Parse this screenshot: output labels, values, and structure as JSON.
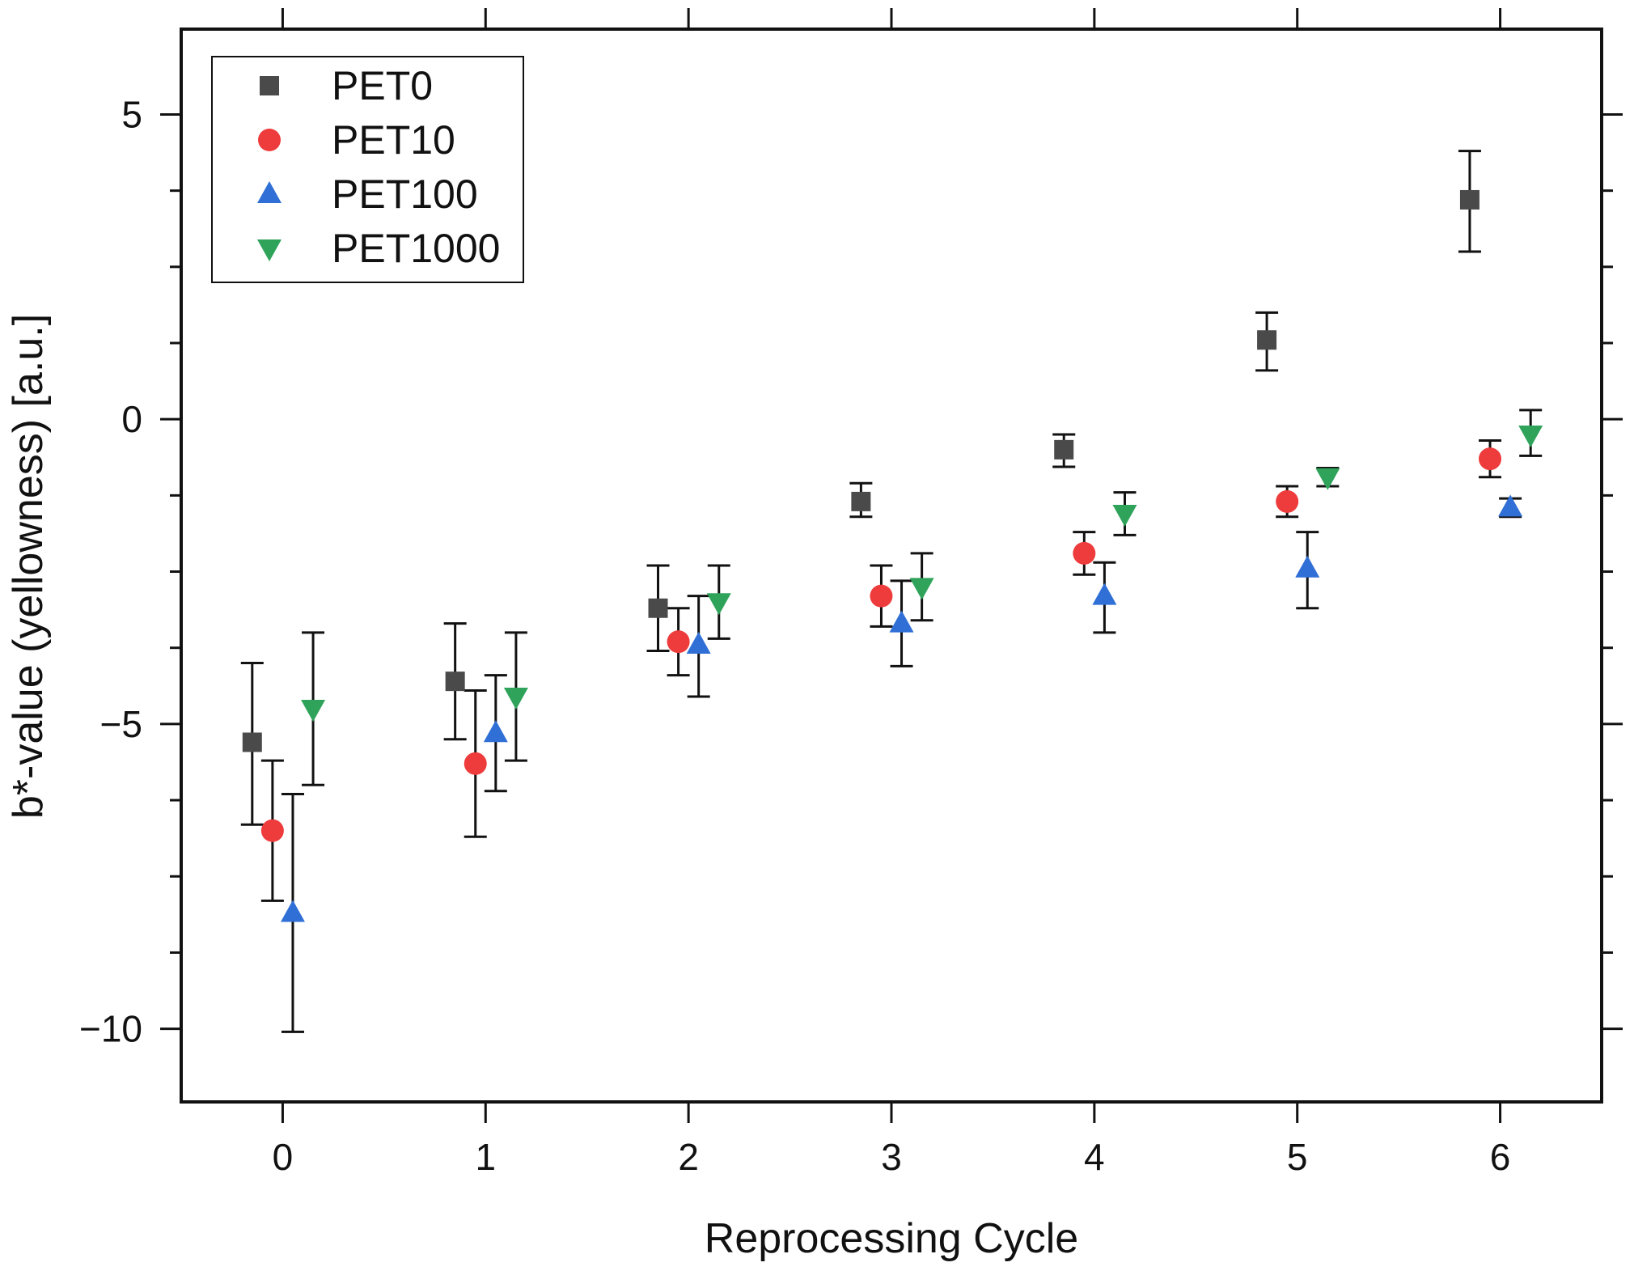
{
  "chart_data": {
    "type": "scatter",
    "xlabel": "Reprocessing Cycle",
    "ylabel": "b*-value (yellowness) [a.u.]",
    "xlim": [
      -0.5,
      6.5
    ],
    "ylim": [
      -11.2,
      6.4
    ],
    "x_ticks": [
      0,
      1,
      2,
      3,
      4,
      5,
      6
    ],
    "x_tick_labels": [
      "0",
      "1",
      "2",
      "3",
      "4",
      "5",
      "6"
    ],
    "y_ticks": [
      -10,
      -5,
      0,
      5
    ],
    "y_tick_labels": [
      "−10",
      "−5",
      "0",
      "5"
    ],
    "y_minor_ticks": [
      -8.75,
      -7.5,
      -6.25,
      -3.75,
      -2.5,
      -1.25,
      1.25,
      2.5,
      3.75
    ],
    "grid": false,
    "legend_position": "top-left",
    "series": [
      {
        "name": "PET0",
        "marker": "square",
        "color": "#4a4a4a",
        "x": [
          -0.15,
          0.85,
          1.85,
          2.85,
          3.85,
          4.85,
          5.85
        ],
        "y": [
          -5.3,
          -4.3,
          -3.1,
          -1.35,
          -0.5,
          1.3,
          3.6
        ],
        "err_low": [
          1.35,
          0.95,
          0.7,
          0.25,
          0.28,
          0.5,
          0.85
        ],
        "err_high": [
          1.3,
          0.95,
          0.7,
          0.3,
          0.25,
          0.45,
          0.8
        ]
      },
      {
        "name": "PET10",
        "marker": "circle",
        "color": "#ee3b3b",
        "x": [
          -0.05,
          0.95,
          1.95,
          2.95,
          3.95,
          4.95,
          5.95
        ],
        "y": [
          -6.75,
          -5.65,
          -3.65,
          -2.9,
          -2.2,
          -1.35,
          -0.65
        ],
        "err_low": [
          1.15,
          1.2,
          0.55,
          0.5,
          0.35,
          0.25,
          0.3
        ],
        "err_high": [
          1.15,
          1.2,
          0.55,
          0.5,
          0.35,
          0.25,
          0.3
        ]
      },
      {
        "name": "PET100",
        "marker": "triangle-up",
        "color": "#2f6fd6",
        "x": [
          0.05,
          1.05,
          2.05,
          3.05,
          4.05,
          5.05,
          6.05
        ],
        "y": [
          -8.1,
          -5.15,
          -3.7,
          -3.35,
          -2.9,
          -2.45,
          -1.45
        ],
        "err_low": [
          1.95,
          0.95,
          0.85,
          0.7,
          0.6,
          0.65,
          0.15
        ],
        "err_high": [
          1.95,
          0.95,
          0.8,
          0.7,
          0.55,
          0.6,
          0.15
        ]
      },
      {
        "name": "PET1000",
        "marker": "triangle-down",
        "color": "#2fa35a",
        "x": [
          0.15,
          1.15,
          2.15,
          3.15,
          4.15,
          5.15,
          6.15
        ],
        "y": [
          -4.75,
          -4.55,
          -3.0,
          -2.75,
          -1.55,
          -0.95,
          -0.25
        ],
        "err_low": [
          1.25,
          1.05,
          0.6,
          0.55,
          0.35,
          0.15,
          0.35
        ],
        "err_high": [
          1.25,
          1.05,
          0.6,
          0.55,
          0.35,
          0.15,
          0.4
        ]
      }
    ]
  }
}
